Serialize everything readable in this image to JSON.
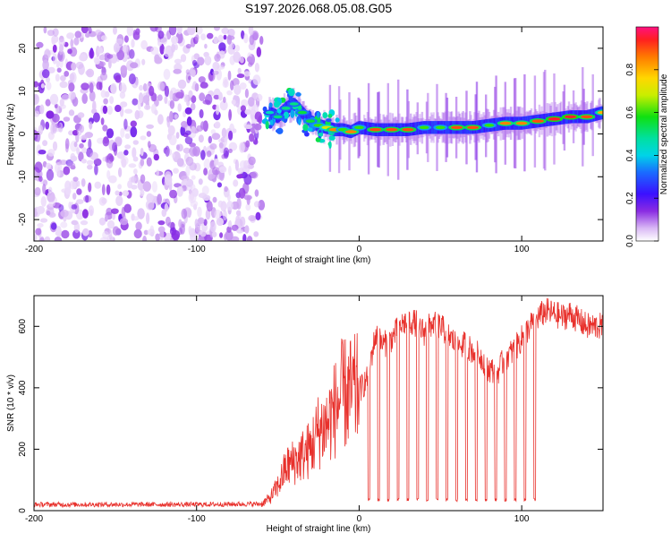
{
  "title": "S197.2026.068.05.08.G05",
  "chart_data": [
    {
      "type": "heatmap",
      "title": "S197.2026.068.05.08.G05",
      "xlabel": "Height of straight line (km)",
      "ylabel": "Frequency (Hz)",
      "xlim": [
        -200,
        150
      ],
      "ylim": [
        -25,
        25
      ],
      "xticks": [
        "-200",
        "-100",
        "0",
        "100"
      ],
      "xtick_values": [
        -200,
        -100,
        0,
        100
      ],
      "yticks": [
        "20",
        "10",
        "0",
        "-10",
        "-20"
      ],
      "ytick_values": [
        20,
        10,
        0,
        -10,
        -20
      ],
      "noise_region_x": [
        -200,
        -60
      ],
      "ridge": {
        "x": [
          -55,
          -50,
          -45,
          -40,
          -35,
          -30,
          -25,
          -20,
          -15,
          -10,
          -5,
          0,
          10,
          20,
          30,
          40,
          50,
          60,
          70,
          80,
          90,
          100,
          110,
          120,
          130,
          140,
          150
        ],
        "freq": [
          5,
          4,
          6,
          7,
          5,
          3,
          2,
          1.5,
          1,
          1,
          0.5,
          1.5,
          1,
          1,
          1,
          1.5,
          1.5,
          1.5,
          1.5,
          2,
          2.5,
          2.5,
          3,
          3.5,
          4,
          4,
          5
        ],
        "amplitude": [
          0.45,
          0.5,
          0.5,
          0.5,
          0.55,
          0.55,
          0.6,
          0.7,
          0.85,
          0.6,
          0.85,
          0.6,
          0.9,
          0.9,
          0.9,
          0.6,
          0.6,
          0.9,
          0.9,
          0.6,
          0.85,
          0.85,
          0.9,
          0.95,
          0.95,
          0.9,
          0.8
        ]
      },
      "colorbar": {
        "label": "Normalized spectral amplitude",
        "range": [
          0,
          1
        ],
        "ticks": [
          "0.0",
          "0.2",
          "0.4",
          "0.6",
          "0.8"
        ],
        "tick_values": [
          0.0,
          0.2,
          0.4,
          0.6,
          0.8
        ]
      }
    },
    {
      "type": "line",
      "xlabel": "Height of straight line (km)",
      "ylabel": "SNR (10 * v/v)",
      "xlim": [
        -200,
        150
      ],
      "ylim": [
        0,
        700
      ],
      "xticks": [
        "-200",
        "-100",
        "0",
        "100"
      ],
      "xtick_values": [
        -200,
        -100,
        0,
        100
      ],
      "yticks": [
        "600",
        "400",
        "200",
        "0"
      ],
      "ytick_values": [
        600,
        400,
        200,
        0
      ],
      "series": [
        {
          "name": "SNR",
          "color": "#e8312c",
          "x": [
            -200,
            -150,
            -100,
            -60,
            -55,
            -50,
            -45,
            -40,
            -35,
            -30,
            -25,
            -20,
            -15,
            -10,
            -5,
            0,
            5,
            10,
            15,
            20,
            25,
            30,
            35,
            40,
            45,
            50,
            55,
            60,
            65,
            70,
            75,
            80,
            85,
            90,
            95,
            100,
            105,
            110,
            115,
            120,
            125,
            130,
            135,
            140,
            145,
            150
          ],
          "values": [
            20,
            20,
            20,
            22,
            40,
            80,
            140,
            160,
            180,
            200,
            260,
            280,
            330,
            380,
            380,
            390,
            430,
            570,
            540,
            560,
            600,
            620,
            610,
            580,
            610,
            600,
            570,
            540,
            540,
            520,
            500,
            460,
            450,
            500,
            520,
            560,
            600,
            630,
            650,
            640,
            630,
            640,
            620,
            600,
            600,
            600
          ],
          "dropout_x": [
            6,
            12,
            18,
            24,
            30,
            36,
            42,
            48,
            54,
            60,
            66,
            72,
            78,
            84,
            90,
            96,
            102,
            108
          ],
          "dropout_value": 30
        }
      ]
    }
  ]
}
